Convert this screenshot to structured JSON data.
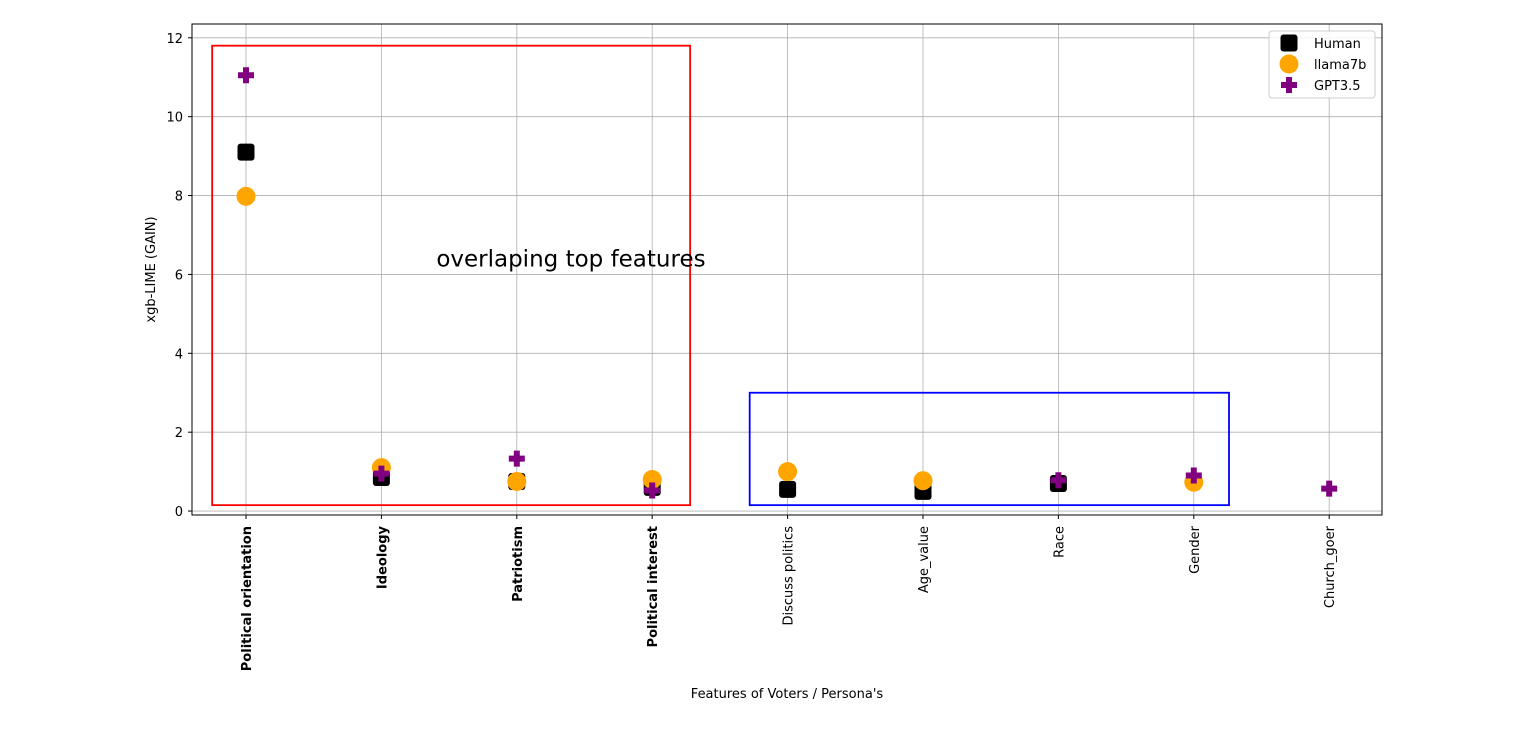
{
  "chart_data": {
    "type": "scatter",
    "title": "",
    "xlabel": "Features of Voters / Persona's",
    "ylabel": "xgb-LIME (GAIN)",
    "ylim": [
      -0.1,
      12.35
    ],
    "yticks": [
      0,
      2,
      4,
      6,
      8,
      10,
      12
    ],
    "grid": true,
    "legend_position": "top-right",
    "categories": [
      "Political orientation",
      "Ideology",
      "Patriotism",
      "Political interest",
      "Discuss politics",
      "Age_value",
      "Race",
      "Gender",
      "Church_goer"
    ],
    "bold_categories": [
      "Political orientation",
      "Ideology",
      "Patriotism",
      "Political interest"
    ],
    "series": [
      {
        "name": "Human",
        "marker": "square",
        "color": "#000000",
        "values": [
          9.1,
          0.85,
          0.75,
          0.6,
          0.55,
          0.5,
          0.7,
          null,
          null
        ]
      },
      {
        "name": "llama7b",
        "marker": "circle",
        "color": "#FFA500",
        "values": [
          7.98,
          1.1,
          0.75,
          0.8,
          1.0,
          0.77,
          null,
          0.73,
          null
        ]
      },
      {
        "name": "GPT3.5",
        "marker": "plus",
        "color": "#800080",
        "values": [
          11.05,
          0.95,
          1.33,
          0.52,
          null,
          null,
          0.78,
          0.9,
          0.57
        ]
      }
    ],
    "annotations": [
      {
        "text": "overlaping top features",
        "x": 2.4,
        "y": 6.4
      }
    ],
    "boxes": [
      {
        "color": "#FF0000",
        "x0": -0.25,
        "x1": 3.28,
        "y0": 0.15,
        "y1": 11.8
      },
      {
        "color": "#0000FF",
        "x0": 3.72,
        "x1": 7.26,
        "y0": 0.15,
        "y1": 3.0
      }
    ]
  }
}
